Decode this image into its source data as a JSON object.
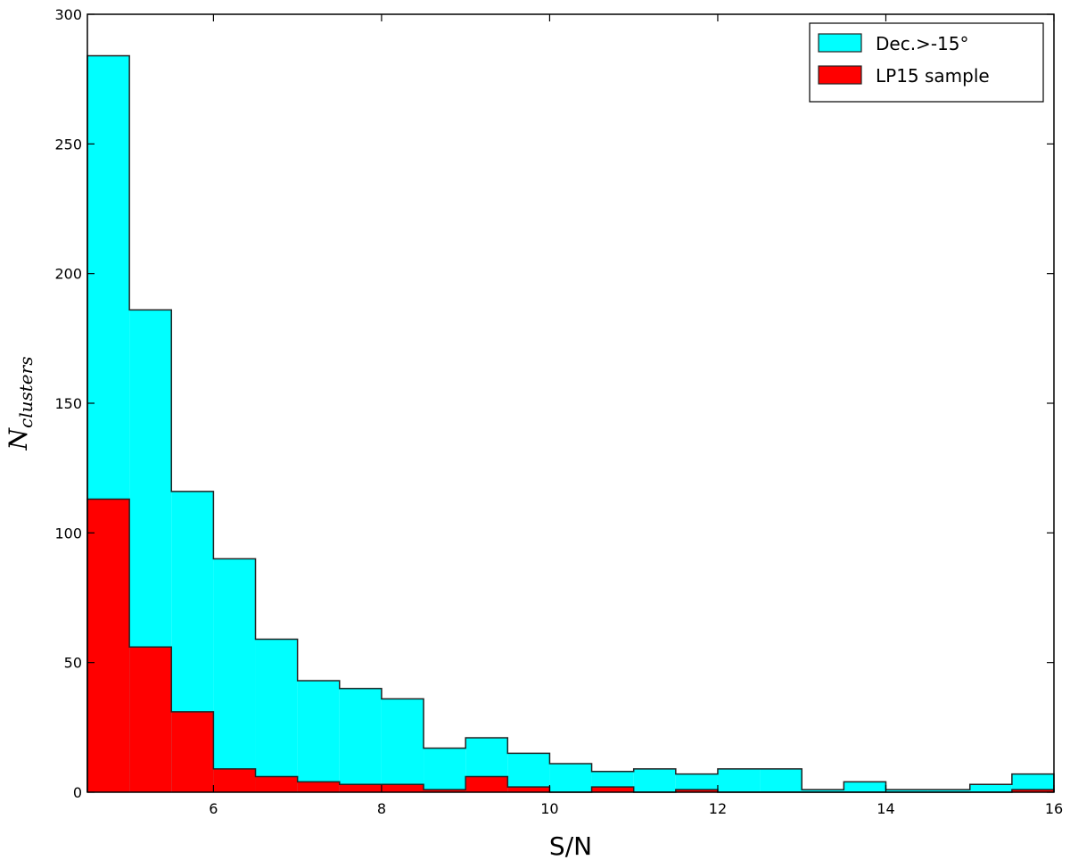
{
  "chart_data": {
    "type": "bar",
    "title": "",
    "xlabel": "S/N",
    "ylabel_main": "N",
    "ylabel_sub": "clusters",
    "xlim": [
      4.5,
      16
    ],
    "ylim": [
      0,
      300
    ],
    "x_ticks": [
      6,
      8,
      10,
      12,
      14,
      16
    ],
    "y_ticks": [
      0,
      50,
      100,
      150,
      200,
      250,
      300
    ],
    "bin_edges": [
      4.5,
      5.0,
      5.5,
      6.0,
      6.5,
      7.0,
      7.5,
      8.0,
      8.5,
      9.0,
      9.5,
      10.0,
      10.5,
      11.0,
      11.5,
      12.0,
      12.5,
      13.0,
      13.5,
      14.0,
      14.5,
      15.0,
      15.5,
      16.0
    ],
    "legend_position": "top-right",
    "grid": false,
    "series": [
      {
        "name": "Dec.>-15°",
        "color": "#00ffff",
        "values": [
          284,
          186,
          116,
          90,
          59,
          43,
          40,
          36,
          17,
          21,
          15,
          11,
          8,
          9,
          7,
          9,
          9,
          1,
          4,
          1,
          1,
          3,
          7
        ]
      },
      {
        "name": "LP15 sample",
        "color": "#ff0000",
        "values": [
          113,
          56,
          31,
          9,
          6,
          4,
          3,
          3,
          1,
          6,
          2,
          0,
          2,
          0,
          1,
          0,
          0,
          0,
          0,
          0,
          0,
          0,
          1
        ]
      }
    ]
  }
}
